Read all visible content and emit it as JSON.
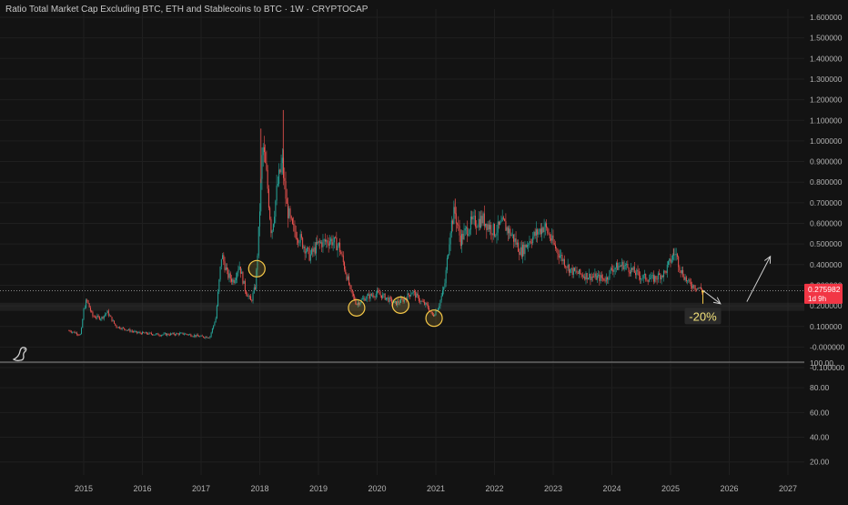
{
  "title": "Ratio Total Market Cap Excluding BTC, ETH and Stablecoins to BTC · 1W · CRYPTOCAP",
  "colors": {
    "background": "#131313",
    "grid": "#1f1f1f",
    "up": "#26a69a",
    "down": "#ef5350",
    "axis_text": "#b2b2b2",
    "last_price_bg": "#f23645",
    "highlight": "#f7c948"
  },
  "chart_data": [
    {
      "type": "candlestick",
      "xlabel": "",
      "ylabel": "",
      "x_ticks": [
        "2015",
        "2016",
        "2017",
        "2018",
        "2019",
        "2020",
        "2021",
        "2022",
        "2023",
        "2024",
        "2025",
        "2026",
        "2027"
      ],
      "y_ticks": [
        "1.600000",
        "1.500000",
        "1.400000",
        "1.300000",
        "1.200000",
        "1.100000",
        "1.000000",
        "0.900000",
        "0.800000",
        "0.700000",
        "0.600000",
        "0.500000",
        "0.400000",
        "0.300000",
        "0.200000",
        "0.100000",
        "-0.000000",
        "-0.100000"
      ],
      "ylim": [
        -0.13,
        1.63
      ],
      "xlim": [
        2014.0,
        2027.4
      ],
      "grid": true,
      "last_value": "0.275982",
      "last_value_countdown": "1d 9h",
      "horizontal_line": 0.2736,
      "support_zone": [
        0.175,
        0.215
      ],
      "price_path": [
        [
          2014.75,
          0.08
        ],
        [
          2014.95,
          0.06
        ],
        [
          2015.0,
          0.18
        ],
        [
          2015.05,
          0.23
        ],
        [
          2015.15,
          0.15
        ],
        [
          2015.3,
          0.14
        ],
        [
          2015.4,
          0.17
        ],
        [
          2015.55,
          0.1
        ],
        [
          2015.9,
          0.07
        ],
        [
          2016.3,
          0.06
        ],
        [
          2016.7,
          0.065
        ],
        [
          2017.0,
          0.05
        ],
        [
          2017.15,
          0.05
        ],
        [
          2017.25,
          0.14
        ],
        [
          2017.35,
          0.45
        ],
        [
          2017.45,
          0.35
        ],
        [
          2017.55,
          0.32
        ],
        [
          2017.65,
          0.4
        ],
        [
          2017.75,
          0.28
        ],
        [
          2017.85,
          0.22
        ],
        [
          2017.93,
          0.3
        ],
        [
          2017.98,
          0.55
        ],
        [
          2018.05,
          0.98
        ],
        [
          2018.12,
          0.82
        ],
        [
          2018.2,
          0.55
        ],
        [
          2018.3,
          0.78
        ],
        [
          2018.38,
          0.9
        ],
        [
          2018.46,
          0.68
        ],
        [
          2018.55,
          0.58
        ],
        [
          2018.7,
          0.52
        ],
        [
          2018.85,
          0.44
        ],
        [
          2019.0,
          0.5
        ],
        [
          2019.2,
          0.52
        ],
        [
          2019.35,
          0.49
        ],
        [
          2019.45,
          0.38
        ],
        [
          2019.55,
          0.27
        ],
        [
          2019.65,
          0.21
        ],
        [
          2019.8,
          0.24
        ],
        [
          2020.0,
          0.26
        ],
        [
          2020.15,
          0.24
        ],
        [
          2020.3,
          0.21
        ],
        [
          2020.45,
          0.23
        ],
        [
          2020.6,
          0.27
        ],
        [
          2020.75,
          0.22
        ],
        [
          2020.85,
          0.2
        ],
        [
          2020.95,
          0.15
        ],
        [
          2021.05,
          0.2
        ],
        [
          2021.15,
          0.3
        ],
        [
          2021.25,
          0.58
        ],
        [
          2021.32,
          0.66
        ],
        [
          2021.42,
          0.52
        ],
        [
          2021.6,
          0.6
        ],
        [
          2021.8,
          0.62
        ],
        [
          2022.0,
          0.56
        ],
        [
          2022.15,
          0.6
        ],
        [
          2022.3,
          0.54
        ],
        [
          2022.45,
          0.46
        ],
        [
          2022.6,
          0.52
        ],
        [
          2022.75,
          0.56
        ],
        [
          2022.85,
          0.59
        ],
        [
          2023.0,
          0.5
        ],
        [
          2023.15,
          0.43
        ],
        [
          2023.3,
          0.37
        ],
        [
          2023.5,
          0.35
        ],
        [
          2023.7,
          0.34
        ],
        [
          2023.9,
          0.33
        ],
        [
          2024.0,
          0.38
        ],
        [
          2024.2,
          0.4
        ],
        [
          2024.35,
          0.37
        ],
        [
          2024.5,
          0.34
        ],
        [
          2024.7,
          0.33
        ],
        [
          2024.9,
          0.36
        ],
        [
          2025.0,
          0.42
        ],
        [
          2025.08,
          0.46
        ],
        [
          2025.18,
          0.37
        ],
        [
          2025.3,
          0.31
        ],
        [
          2025.45,
          0.29
        ],
        [
          2025.55,
          0.276
        ]
      ],
      "spikes": [
        [
          2018.02,
          1.06
        ],
        [
          2018.4,
          1.15
        ],
        [
          2021.33,
          0.72
        ],
        [
          2025.05,
          0.48
        ]
      ],
      "circled_lows": [
        2017.95,
        2019.65,
        2020.4,
        2020.97
      ],
      "annotation_label": "-20%",
      "forecast_arrows": [
        {
          "from": [
            2025.55,
            0.275
          ],
          "to": [
            2025.85,
            0.21
          ]
        },
        {
          "from": [
            2026.3,
            0.22
          ],
          "to": [
            2026.7,
            0.44
          ]
        }
      ]
    },
    {
      "type": "indicator-pane",
      "y_ticks": [
        "100.00",
        "80.00",
        "60.00",
        "40.00",
        "20.00"
      ],
      "ylim": [
        10,
        103
      ],
      "values": []
    }
  ]
}
